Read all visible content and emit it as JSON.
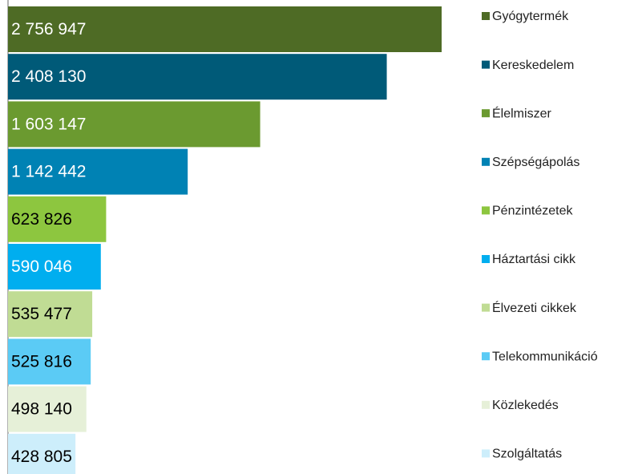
{
  "chart_data": {
    "type": "bar",
    "orientation": "horizontal",
    "series": [
      {
        "name": "Gyógytermék",
        "color": "#4e6b25",
        "values": [
          2756947
        ],
        "value_labels": [
          "2 756 947"
        ]
      },
      {
        "name": "Kereskedelem",
        "color": "#005a78",
        "values": [
          2408130
        ],
        "value_labels": [
          "2 408 130"
        ]
      },
      {
        "name": "Élelmiszer",
        "color": "#6b9a30",
        "values": [
          1603147
        ],
        "value_labels": [
          "1 603 147"
        ]
      },
      {
        "name": "Szépségápolás",
        "color": "#0082b4",
        "values": [
          1142442
        ],
        "value_labels": [
          "1 142 442"
        ]
      },
      {
        "name": "Pénzintézetek",
        "color": "#8dc63f",
        "values": [
          623826
        ],
        "value_labels": [
          "623 826"
        ]
      },
      {
        "name": "Háztartási cikk",
        "color": "#00aeef",
        "values": [
          590046
        ],
        "value_labels": [
          "590 046"
        ]
      },
      {
        "name": "Élvezeti cikkek",
        "color": "#c0dc94",
        "values": [
          535477
        ],
        "value_labels": [
          "535 477"
        ]
      },
      {
        "name": "Telekommunikáció",
        "color": "#5bcbf5",
        "values": [
          525816
        ],
        "value_labels": [
          "525 816"
        ]
      },
      {
        "name": "Közlekedés",
        "color": "#e6f0d8",
        "values": [
          498140
        ],
        "value_labels": [
          "498 140"
        ]
      },
      {
        "name": "Szolgáltatás",
        "color": "#cdeefb",
        "values": [
          428805
        ],
        "value_labels": [
          "428 805"
        ]
      }
    ],
    "legend": "right"
  }
}
